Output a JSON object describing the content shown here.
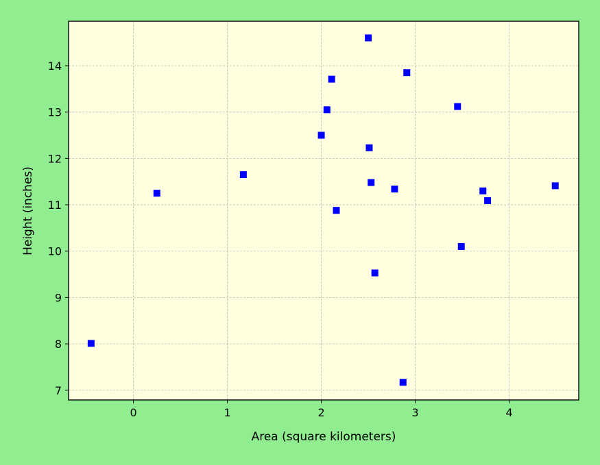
{
  "chart_data": {
    "type": "scatter",
    "title": "",
    "xlabel": "Area (square kilometers)",
    "ylabel": "Height (inches)",
    "xlim": [
      -0.69,
      4.74
    ],
    "ylim": [
      6.79,
      14.96
    ],
    "xticks": [
      0,
      1,
      2,
      3,
      4
    ],
    "yticks": [
      7,
      8,
      9,
      10,
      11,
      12,
      13,
      14
    ],
    "grid": true,
    "colors": {
      "figure_background": "#90ee90",
      "plot_background": "#ffffe0",
      "marker": "#0000ff",
      "grid": "#bdbdbd"
    },
    "marker": "square",
    "series": [
      {
        "name": "points",
        "x": [
          -0.45,
          0.25,
          1.17,
          2.0,
          2.06,
          2.11,
          2.16,
          2.5,
          2.51,
          2.53,
          2.57,
          2.78,
          2.87,
          2.91,
          3.45,
          3.49,
          3.72,
          3.77,
          4.49
        ],
        "y": [
          8.01,
          11.25,
          11.65,
          12.5,
          13.05,
          13.71,
          10.88,
          14.6,
          12.23,
          11.48,
          9.53,
          11.34,
          7.17,
          13.85,
          13.12,
          10.1,
          11.3,
          11.09,
          11.41
        ]
      }
    ]
  }
}
